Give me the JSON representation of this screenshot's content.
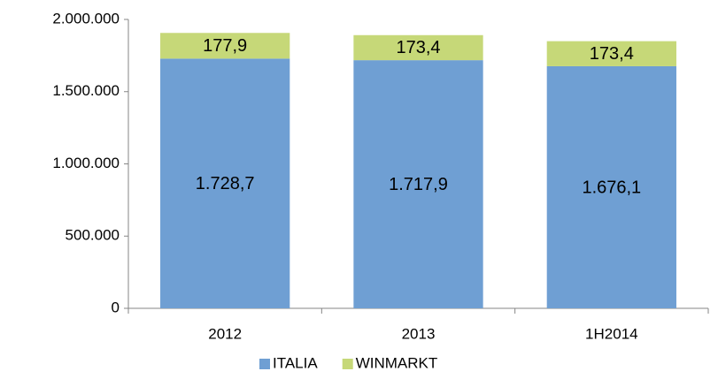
{
  "chart_data": {
    "type": "stacked_bar",
    "categories": [
      "2012",
      "2013",
      "1H2014"
    ],
    "series": [
      {
        "name": "ITALIA",
        "color": "#6f9fd3",
        "values": [
          1728700,
          1717900,
          1676100
        ],
        "value_labels": [
          "1.728,7",
          "1.717,9",
          "1.676,1"
        ]
      },
      {
        "name": "WINMARKT",
        "color": "#c6d878",
        "values": [
          177900,
          173400,
          173400
        ],
        "value_labels": [
          "177,9",
          "173,4",
          "173,4"
        ]
      }
    ],
    "ylim": [
      0,
      2000000
    ],
    "yticks": [
      0,
      {
        "value": 500000,
        "label": "500.000"
      },
      {
        "value": 1000000,
        "label": "1.000.000"
      },
      {
        "value": 1500000,
        "label": "1.500.000"
      },
      {
        "value": 2000000,
        "label": "2.000.000"
      }
    ],
    "grid": false,
    "legend": "bottom"
  }
}
